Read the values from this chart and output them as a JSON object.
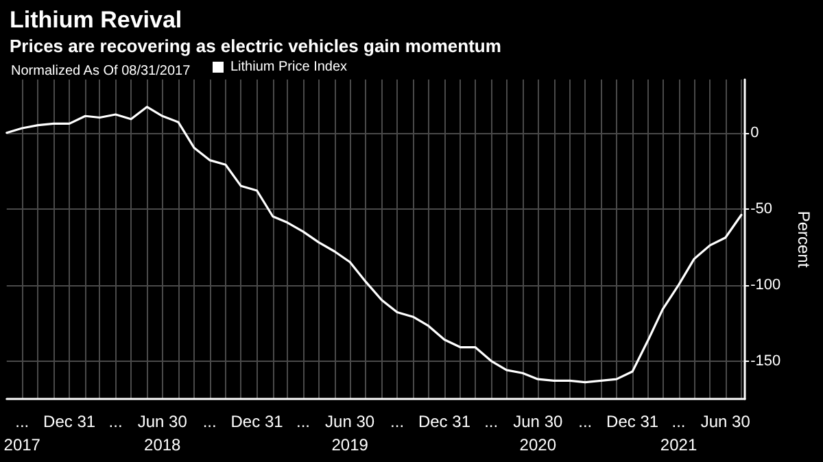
{
  "chart_data": {
    "type": "line",
    "title": "Lithium Revival",
    "subtitle": "Prices are recovering as electric vehicles gain momentum",
    "legend_title": "Normalized As Of 08/31/2017",
    "ylabel": "Percent",
    "x": [
      "2017-08-31",
      "2017-09-30",
      "2017-10-31",
      "2017-11-30",
      "2017-12-31",
      "2018-01-31",
      "2018-02-28",
      "2018-03-31",
      "2018-04-30",
      "2018-05-31",
      "2018-06-30",
      "2018-07-31",
      "2018-08-31",
      "2018-09-30",
      "2018-10-31",
      "2018-11-30",
      "2018-12-31",
      "2019-01-31",
      "2019-02-28",
      "2019-03-31",
      "2019-04-30",
      "2019-05-31",
      "2019-06-30",
      "2019-07-31",
      "2019-08-31",
      "2019-09-30",
      "2019-10-31",
      "2019-11-30",
      "2019-12-31",
      "2020-01-31",
      "2020-02-29",
      "2020-03-31",
      "2020-04-30",
      "2020-05-31",
      "2020-06-30",
      "2020-07-31",
      "2020-08-31",
      "2020-09-30",
      "2020-10-31",
      "2020-11-30",
      "2020-12-31",
      "2021-01-31",
      "2021-02-28",
      "2021-03-31",
      "2021-04-30",
      "2021-05-31",
      "2021-06-30",
      "2021-07-31"
    ],
    "series": [
      {
        "name": "Lithium Price Index",
        "color": "#ffffff",
        "values": [
          0,
          3,
          5,
          6,
          6,
          11,
          10,
          12,
          9,
          17,
          11,
          7,
          -10,
          -18,
          -21,
          -35,
          -38,
          -55,
          -59,
          -65,
          -72,
          -78,
          -85,
          -98,
          -110,
          -118,
          -121,
          -127,
          -136,
          -141,
          -141,
          -150,
          -156,
          -158,
          -162,
          -163,
          -163,
          -164,
          -163,
          -162,
          -157,
          -136,
          -116,
          -100,
          -83,
          -74,
          -69,
          -54
        ]
      }
    ],
    "xlim": [
      "2017-08-31",
      "2021-08-07"
    ],
    "xticks": [
      {
        "value": "2017-09-30",
        "label": "...\n2017"
      },
      {
        "value": "2017-10-31",
        "label": null
      },
      {
        "value": "2017-11-30",
        "label": null
      },
      {
        "value": "2017-12-31",
        "label": "Dec 31"
      },
      {
        "value": "2018-01-31",
        "label": null
      },
      {
        "value": "2018-02-28",
        "label": null
      },
      {
        "value": "2018-03-31",
        "label": "..."
      },
      {
        "value": "2018-04-30",
        "label": null
      },
      {
        "value": "2018-05-31",
        "label": null
      },
      {
        "value": "2018-06-30",
        "label": "Jun 30\n2018"
      },
      {
        "value": "2018-07-31",
        "label": null
      },
      {
        "value": "2018-08-31",
        "label": null
      },
      {
        "value": "2018-09-30",
        "label": "..."
      },
      {
        "value": "2018-10-31",
        "label": null
      },
      {
        "value": "2018-11-30",
        "label": null
      },
      {
        "value": "2018-12-31",
        "label": "Dec 31"
      },
      {
        "value": "2019-01-31",
        "label": null
      },
      {
        "value": "2019-02-28",
        "label": null
      },
      {
        "value": "2019-03-31",
        "label": "..."
      },
      {
        "value": "2019-04-30",
        "label": null
      },
      {
        "value": "2019-05-31",
        "label": null
      },
      {
        "value": "2019-06-30",
        "label": "Jun 30\n2019"
      },
      {
        "value": "2019-07-31",
        "label": null
      },
      {
        "value": "2019-08-31",
        "label": null
      },
      {
        "value": "2019-09-30",
        "label": "..."
      },
      {
        "value": "2019-10-31",
        "label": null
      },
      {
        "value": "2019-11-30",
        "label": null
      },
      {
        "value": "2019-12-31",
        "label": "Dec 31"
      },
      {
        "value": "2020-01-31",
        "label": null
      },
      {
        "value": "2020-02-29",
        "label": null
      },
      {
        "value": "2020-03-31",
        "label": "..."
      },
      {
        "value": "2020-04-30",
        "label": null
      },
      {
        "value": "2020-05-31",
        "label": null
      },
      {
        "value": "2020-06-30",
        "label": "Jun 30\n2020"
      },
      {
        "value": "2020-07-31",
        "label": null
      },
      {
        "value": "2020-08-31",
        "label": null
      },
      {
        "value": "2020-09-30",
        "label": "..."
      },
      {
        "value": "2020-10-31",
        "label": null
      },
      {
        "value": "2020-11-30",
        "label": null
      },
      {
        "value": "2020-12-31",
        "label": "Dec 31"
      },
      {
        "value": "2021-01-31",
        "label": null
      },
      {
        "value": "2021-02-28",
        "label": null
      },
      {
        "value": "2021-03-31",
        "label": "...\n2021"
      },
      {
        "value": "2021-04-30",
        "label": null
      },
      {
        "value": "2021-05-31",
        "label": null
      },
      {
        "value": "2021-06-30",
        "label": "Jun 30"
      },
      {
        "value": "2021-07-31",
        "label": null
      }
    ],
    "ylim": [
      -175,
      35
    ],
    "yticks": [
      0,
      -50,
      -100,
      -150
    ],
    "grid": true,
    "legend": "top left",
    "marker": "none",
    "line_style": "solid"
  }
}
